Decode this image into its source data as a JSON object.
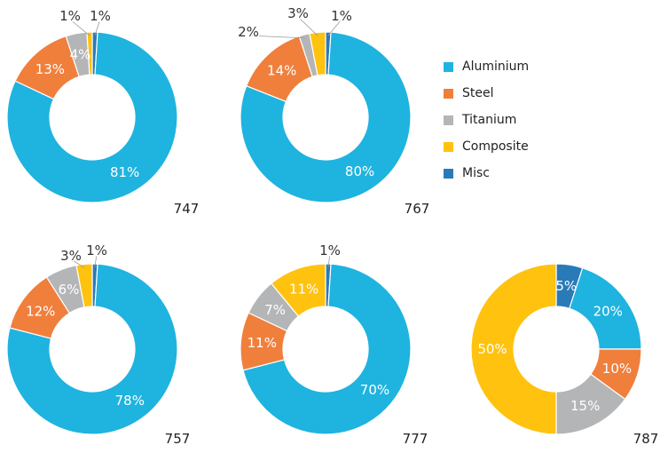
{
  "colors": {
    "Aluminium": "#1FB3DF",
    "Steel": "#F07F3C",
    "Titanium": "#B4B5B7",
    "Composite": "#FFC20E",
    "Misc": "#2A7AB8"
  },
  "legend": [
    {
      "label": "Aluminium",
      "color": "#1FB3DF"
    },
    {
      "label": "Steel",
      "color": "#F07F3C"
    },
    {
      "label": "Titanium",
      "color": "#B4B5B7"
    },
    {
      "label": "Composite",
      "color": "#FFC20E"
    },
    {
      "label": "Misc",
      "color": "#2A7AB8"
    }
  ],
  "chart_data": [
    {
      "type": "pie",
      "title": "747",
      "categories": [
        "Aluminium",
        "Steel",
        "Titanium",
        "Composite",
        "Misc"
      ],
      "values": [
        81,
        13,
        4,
        1,
        1
      ],
      "labels": [
        "81%",
        "13%",
        "4%",
        "1%",
        "1%"
      ]
    },
    {
      "type": "pie",
      "title": "767",
      "categories": [
        "Aluminium",
        "Steel",
        "Titanium",
        "Composite",
        "Misc"
      ],
      "values": [
        80,
        14,
        2,
        3,
        1
      ],
      "labels": [
        "80%",
        "14%",
        "2%",
        "3%",
        "1%"
      ]
    },
    {
      "type": "pie",
      "title": "757",
      "categories": [
        "Aluminium",
        "Steel",
        "Titanium",
        "Composite",
        "Misc"
      ],
      "values": [
        78,
        12,
        6,
        3,
        1
      ],
      "labels": [
        "78%",
        "12%",
        "6%",
        "3%",
        "1%"
      ]
    },
    {
      "type": "pie",
      "title": "777",
      "categories": [
        "Aluminium",
        "Steel",
        "Titanium",
        "Composite",
        "Misc"
      ],
      "values": [
        70,
        11,
        7,
        11,
        1
      ],
      "labels": [
        "70%",
        "11%",
        "7%",
        "11%",
        "1%"
      ]
    },
    {
      "type": "pie",
      "title": "787",
      "categories": [
        "Aluminium",
        "Steel",
        "Titanium",
        "Composite",
        "Misc"
      ],
      "values": [
        20,
        10,
        15,
        50,
        5
      ],
      "labels": [
        "20%",
        "10%",
        "15%",
        "50%",
        "5%"
      ]
    }
  ]
}
